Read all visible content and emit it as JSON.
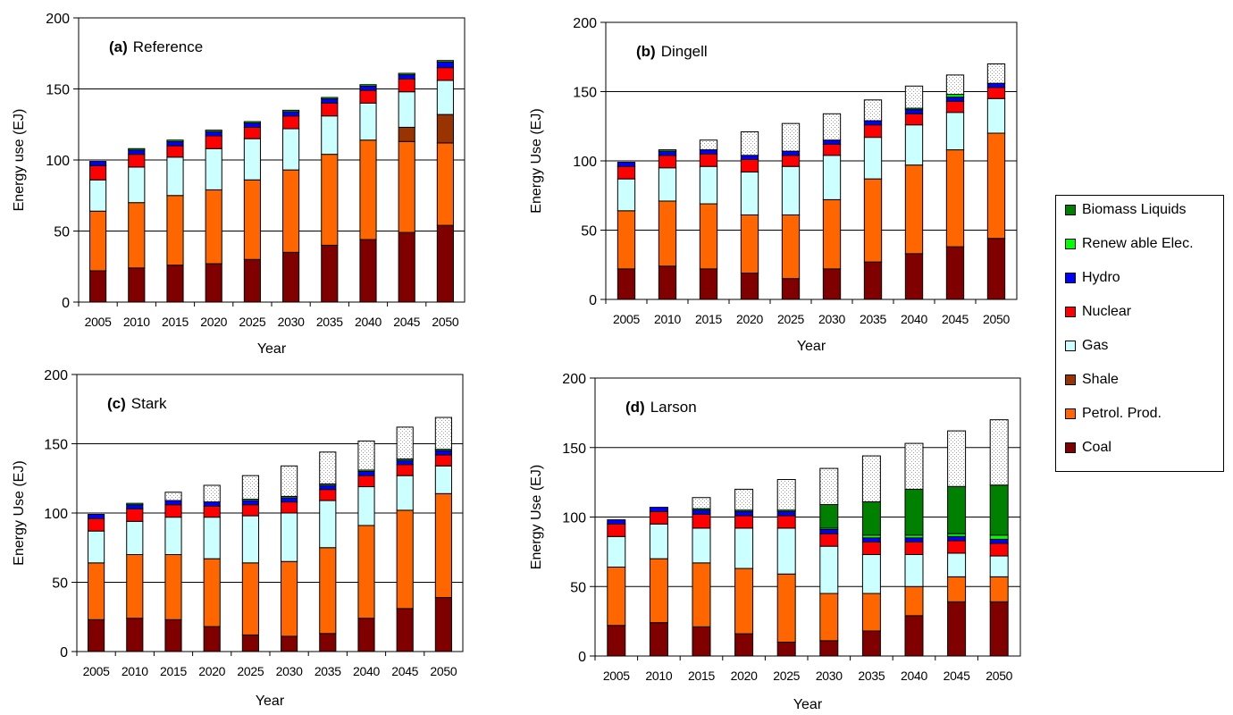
{
  "legend": {
    "items": [
      {
        "label": "Biomass Liquids",
        "series": "biomass"
      },
      {
        "label": "Renew able Elec.",
        "series": "renewable"
      },
      {
        "label": "Hydro",
        "series": "hydro"
      },
      {
        "label": "Nuclear",
        "series": "nuclear"
      },
      {
        "label": "Gas",
        "series": "gas"
      },
      {
        "label": "Shale",
        "series": "shale"
      },
      {
        "label": "Petrol. Prod.",
        "series": "petrol"
      },
      {
        "label": "Coal",
        "series": "coal"
      }
    ]
  },
  "colors": {
    "coal": "#800000",
    "petrol": "#ff6600",
    "shale": "#993300",
    "gas": "#ccffff",
    "nuclear": "#ff0000",
    "hydro": "#0000ff",
    "renewable": "#00ff00",
    "biomass": "#008000",
    "savings": "#ededed"
  },
  "chart_data": [
    {
      "type": "bar",
      "stacked": true,
      "title_tag": "(a)",
      "title": "Reference",
      "xlabel": "Year",
      "ylabel": "Energy use (EJ)",
      "ylim": [
        0,
        200
      ],
      "yticks": [
        0,
        50,
        100,
        150,
        200
      ],
      "grid": true,
      "categories": [
        "2005",
        "2010",
        "2015",
        "2020",
        "2025",
        "2030",
        "2035",
        "2040",
        "2045",
        "2050"
      ],
      "series": [
        {
          "key": "coal",
          "values": [
            22,
            24,
            26,
            27,
            30,
            35,
            40,
            44,
            49,
            54
          ]
        },
        {
          "key": "petrol",
          "values": [
            42,
            46,
            49,
            52,
            56,
            58,
            64,
            70,
            64,
            58
          ]
        },
        {
          "key": "shale",
          "values": [
            0,
            0,
            0,
            0,
            0,
            0,
            0,
            0,
            10,
            20
          ]
        },
        {
          "key": "gas",
          "values": [
            22,
            25,
            27,
            29,
            29,
            29,
            27,
            26,
            25,
            24
          ]
        },
        {
          "key": "nuclear",
          "values": [
            10,
            9,
            8,
            9,
            8,
            9,
            9,
            9,
            9,
            9
          ]
        },
        {
          "key": "hydro",
          "values": [
            3,
            3,
            3,
            3,
            3,
            3,
            3,
            3,
            3,
            4
          ]
        },
        {
          "key": "renewable",
          "values": [
            0,
            1,
            1,
            1,
            1,
            1,
            1,
            1,
            1,
            1
          ]
        }
      ]
    },
    {
      "type": "bar",
      "stacked": true,
      "title_tag": "(b)",
      "title": "Dingell",
      "xlabel": "Year",
      "ylabel": "Energy Use (EJ)",
      "ylim": [
        0,
        200
      ],
      "yticks": [
        0,
        50,
        100,
        150,
        200
      ],
      "grid": true,
      "categories": [
        "2005",
        "2010",
        "2015",
        "2020",
        "2025",
        "2030",
        "2035",
        "2040",
        "2045",
        "2050"
      ],
      "series": [
        {
          "key": "coal",
          "values": [
            22,
            24,
            22,
            19,
            15,
            22,
            27,
            33,
            38,
            44
          ]
        },
        {
          "key": "petrol",
          "values": [
            42,
            47,
            47,
            42,
            46,
            50,
            60,
            64,
            70,
            76
          ]
        },
        {
          "key": "gas",
          "values": [
            23,
            24,
            27,
            31,
            35,
            32,
            30,
            29,
            27,
            25
          ]
        },
        {
          "key": "nuclear",
          "values": [
            9,
            9,
            9,
            9,
            8,
            8,
            9,
            8,
            8,
            8
          ]
        },
        {
          "key": "hydro",
          "values": [
            3,
            3,
            3,
            3,
            3,
            3,
            3,
            3,
            3,
            3
          ]
        },
        {
          "key": "renewable",
          "values": [
            0,
            1,
            0,
            0,
            0,
            0,
            0,
            1,
            2,
            0
          ]
        },
        {
          "key": "savings",
          "values": [
            0,
            0,
            7,
            17,
            20,
            19,
            15,
            16,
            14,
            14
          ]
        }
      ]
    },
    {
      "type": "bar",
      "stacked": true,
      "title_tag": "(c)",
      "title": "Stark",
      "xlabel": "Year",
      "ylabel": "Energy Use (EJ)",
      "ylim": [
        0,
        200
      ],
      "yticks": [
        0,
        50,
        100,
        150,
        200
      ],
      "grid": true,
      "categories": [
        "2005",
        "2010",
        "2015",
        "2020",
        "2025",
        "2030",
        "2035",
        "2040",
        "2045",
        "2050"
      ],
      "series": [
        {
          "key": "coal",
          "values": [
            23,
            24,
            23,
            18,
            12,
            11,
            13,
            24,
            31,
            39
          ]
        },
        {
          "key": "petrol",
          "values": [
            41,
            46,
            47,
            49,
            52,
            54,
            62,
            67,
            71,
            75
          ]
        },
        {
          "key": "gas",
          "values": [
            23,
            24,
            27,
            30,
            34,
            35,
            34,
            28,
            25,
            20
          ]
        },
        {
          "key": "nuclear",
          "values": [
            9,
            9,
            9,
            8,
            8,
            8,
            8,
            8,
            8,
            8
          ]
        },
        {
          "key": "hydro",
          "values": [
            3,
            3,
            3,
            3,
            3,
            3,
            3,
            3,
            3,
            3
          ]
        },
        {
          "key": "renewable",
          "values": [
            0,
            1,
            0,
            0,
            1,
            1,
            1,
            1,
            1,
            1
          ]
        },
        {
          "key": "savings",
          "values": [
            0,
            0,
            6,
            12,
            17,
            22,
            23,
            21,
            23,
            23
          ]
        }
      ]
    },
    {
      "type": "bar",
      "stacked": true,
      "title_tag": "(d)",
      "title": "Larson",
      "xlabel": "Year",
      "ylabel": "Energy Use (EJ)",
      "ylim": [
        0,
        200
      ],
      "yticks": [
        0,
        50,
        100,
        150,
        200
      ],
      "grid": true,
      "categories": [
        "2005",
        "2010",
        "2015",
        "2020",
        "2025",
        "2030",
        "2035",
        "2040",
        "2045",
        "2050"
      ],
      "series": [
        {
          "key": "coal",
          "values": [
            22,
            24,
            21,
            16,
            10,
            11,
            18,
            29,
            39,
            39
          ]
        },
        {
          "key": "petrol",
          "values": [
            42,
            46,
            46,
            47,
            49,
            34,
            27,
            21,
            18,
            18
          ]
        },
        {
          "key": "gas",
          "values": [
            22,
            25,
            25,
            29,
            33,
            34,
            28,
            23,
            17,
            15
          ]
        },
        {
          "key": "nuclear",
          "values": [
            9,
            9,
            10,
            9,
            9,
            9,
            9,
            9,
            9,
            9
          ]
        },
        {
          "key": "hydro",
          "values": [
            3,
            3,
            3,
            3,
            3,
            3,
            3,
            3,
            3,
            3
          ]
        },
        {
          "key": "renewable",
          "values": [
            0,
            0,
            1,
            1,
            1,
            1,
            2,
            2,
            2,
            3
          ]
        },
        {
          "key": "biomass",
          "values": [
            0,
            0,
            0,
            0,
            0,
            17,
            24,
            33,
            34,
            36
          ]
        },
        {
          "key": "savings",
          "values": [
            0,
            0,
            8,
            15,
            22,
            26,
            33,
            33,
            40,
            47
          ]
        }
      ]
    }
  ]
}
